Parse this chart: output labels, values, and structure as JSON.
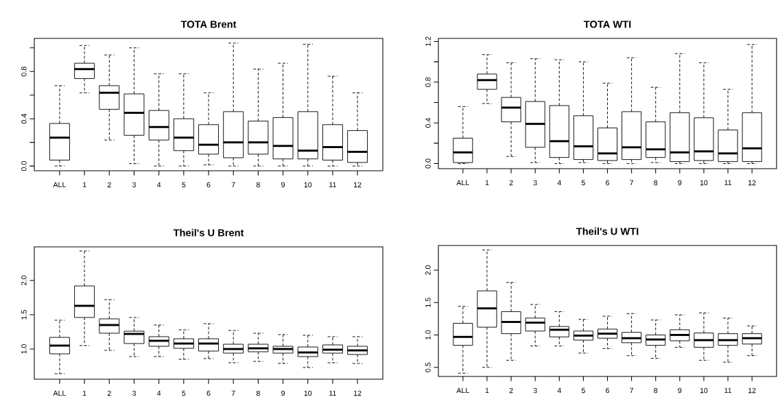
{
  "chart_data": [
    {
      "type": "box",
      "title": "TOTA Brent",
      "categories": [
        "ALL",
        "1",
        "2",
        "3",
        "4",
        "5",
        "6",
        "7",
        "8",
        "9",
        "10",
        "11",
        "12"
      ],
      "ylim": [
        -0.04,
        1.08
      ],
      "yticks": [
        {
          "value": 0,
          "label": "0.0"
        },
        {
          "value": 0.2,
          "label": null
        },
        0.4,
        {
          "value": 0.6,
          "label": null
        },
        0.8,
        {
          "value": 1.0,
          "label": null
        }
      ],
      "boxes": [
        {
          "low": 0.0,
          "q1": 0.05,
          "median": 0.24,
          "q3": 0.36,
          "high": 0.68
        },
        {
          "low": 0.62,
          "q1": 0.74,
          "median": 0.82,
          "q3": 0.87,
          "high": 1.02
        },
        {
          "low": 0.22,
          "q1": 0.48,
          "median": 0.62,
          "q3": 0.68,
          "high": 0.94
        },
        {
          "low": 0.02,
          "q1": 0.26,
          "median": 0.45,
          "q3": 0.61,
          "high": 1.0
        },
        {
          "low": 0.0,
          "q1": 0.22,
          "median": 0.33,
          "q3": 0.47,
          "high": 0.78
        },
        {
          "low": 0.0,
          "q1": 0.13,
          "median": 0.24,
          "q3": 0.4,
          "high": 0.78
        },
        {
          "low": 0.01,
          "q1": 0.1,
          "median": 0.18,
          "q3": 0.35,
          "high": 0.62
        },
        {
          "low": 0.0,
          "q1": 0.07,
          "median": 0.2,
          "q3": 0.46,
          "high": 1.04
        },
        {
          "low": 0.0,
          "q1": 0.1,
          "median": 0.2,
          "q3": 0.38,
          "high": 0.82
        },
        {
          "low": 0.0,
          "q1": 0.06,
          "median": 0.17,
          "q3": 0.41,
          "high": 0.87
        },
        {
          "low": 0.0,
          "q1": 0.06,
          "median": 0.13,
          "q3": 0.46,
          "high": 1.03
        },
        {
          "low": 0.0,
          "q1": 0.05,
          "median": 0.16,
          "q3": 0.35,
          "high": 0.76
        },
        {
          "low": 0.0,
          "q1": 0.03,
          "median": 0.12,
          "q3": 0.3,
          "high": 0.62
        }
      ]
    },
    {
      "type": "box",
      "title": "TOTA WTI",
      "categories": [
        "ALL",
        "1",
        "2",
        "3",
        "4",
        "5",
        "6",
        "7",
        "8",
        "9",
        "10",
        "11",
        "12"
      ],
      "ylim": [
        -0.05,
        1.23
      ],
      "yticks": [
        {
          "value": 0,
          "label": "0.0"
        },
        {
          "value": 0.2,
          "label": null
        },
        0.4,
        {
          "value": 0.6,
          "label": null
        },
        0.8,
        {
          "value": 1.0,
          "label": null
        },
        1.2
      ],
      "boxes": [
        {
          "low": 0.0,
          "q1": 0.01,
          "median": 0.11,
          "q3": 0.25,
          "high": 0.56
        },
        {
          "low": 0.59,
          "q1": 0.73,
          "median": 0.82,
          "q3": 0.88,
          "high": 1.07
        },
        {
          "low": 0.07,
          "q1": 0.41,
          "median": 0.55,
          "q3": 0.65,
          "high": 0.99
        },
        {
          "low": 0.01,
          "q1": 0.16,
          "median": 0.39,
          "q3": 0.61,
          "high": 1.03
        },
        {
          "low": 0.0,
          "q1": 0.06,
          "median": 0.22,
          "q3": 0.57,
          "high": 1.02
        },
        {
          "low": 0.01,
          "q1": 0.04,
          "median": 0.17,
          "q3": 0.47,
          "high": 1.0
        },
        {
          "low": 0.0,
          "q1": 0.03,
          "median": 0.1,
          "q3": 0.35,
          "high": 0.79
        },
        {
          "low": 0.0,
          "q1": 0.04,
          "median": 0.16,
          "q3": 0.51,
          "high": 1.04
        },
        {
          "low": 0.01,
          "q1": 0.06,
          "median": 0.14,
          "q3": 0.41,
          "high": 0.75
        },
        {
          "low": 0.0,
          "q1": 0.02,
          "median": 0.11,
          "q3": 0.5,
          "high": 1.08
        },
        {
          "low": 0.0,
          "q1": 0.03,
          "median": 0.12,
          "q3": 0.45,
          "high": 0.99
        },
        {
          "low": 0.0,
          "q1": 0.02,
          "median": 0.1,
          "q3": 0.33,
          "high": 0.73
        },
        {
          "low": 0.0,
          "q1": 0.02,
          "median": 0.15,
          "q3": 0.5,
          "high": 1.17
        }
      ]
    },
    {
      "type": "box",
      "title": "Theil's U Brent",
      "categories": [
        "ALL",
        "1",
        "2",
        "3",
        "4",
        "5",
        "6",
        "7",
        "8",
        "9",
        "10",
        "11",
        "12"
      ],
      "ylim": [
        0.56,
        2.49
      ],
      "yticks": [
        {
          "value": 1,
          "label": "1.0"
        },
        1.5,
        {
          "value": 2,
          "label": "2.0"
        }
      ],
      "boxes": [
        {
          "low": 0.64,
          "q1": 0.93,
          "median": 1.05,
          "q3": 1.17,
          "high": 1.42
        },
        {
          "low": 1.05,
          "q1": 1.46,
          "median": 1.63,
          "q3": 1.92,
          "high": 2.43
        },
        {
          "low": 0.98,
          "q1": 1.23,
          "median": 1.35,
          "q3": 1.44,
          "high": 1.72
        },
        {
          "low": 0.89,
          "q1": 1.08,
          "median": 1.22,
          "q3": 1.26,
          "high": 1.46
        },
        {
          "low": 0.89,
          "q1": 1.04,
          "median": 1.12,
          "q3": 1.18,
          "high": 1.35
        },
        {
          "low": 0.85,
          "q1": 1.01,
          "median": 1.08,
          "q3": 1.15,
          "high": 1.28
        },
        {
          "low": 0.86,
          "q1": 0.97,
          "median": 1.08,
          "q3": 1.15,
          "high": 1.37
        },
        {
          "low": 0.8,
          "q1": 0.94,
          "median": 1.0,
          "q3": 1.07,
          "high": 1.27
        },
        {
          "low": 0.82,
          "q1": 0.96,
          "median": 1.01,
          "q3": 1.07,
          "high": 1.23
        },
        {
          "low": 0.79,
          "q1": 0.94,
          "median": 1.0,
          "q3": 1.04,
          "high": 1.21
        },
        {
          "low": 0.73,
          "q1": 0.89,
          "median": 0.95,
          "q3": 1.03,
          "high": 1.2
        },
        {
          "low": 0.8,
          "q1": 0.94,
          "median": 0.99,
          "q3": 1.06,
          "high": 1.18
        },
        {
          "low": 0.79,
          "q1": 0.92,
          "median": 0.98,
          "q3": 1.04,
          "high": 1.18
        }
      ]
    },
    {
      "type": "box",
      "title": "Theil's U WTI",
      "categories": [
        "ALL",
        "1",
        "2",
        "3",
        "4",
        "5",
        "6",
        "7",
        "8",
        "9",
        "10",
        "11",
        "12"
      ],
      "ylim": [
        0.36,
        2.38
      ],
      "yticks": [
        0.5,
        {
          "value": 1,
          "label": "1.0"
        },
        1.5,
        {
          "value": 2,
          "label": "2.0"
        }
      ],
      "boxes": [
        {
          "low": 0.41,
          "q1": 0.84,
          "median": 0.97,
          "q3": 1.18,
          "high": 1.44
        },
        {
          "low": 0.5,
          "q1": 1.12,
          "median": 1.41,
          "q3": 1.68,
          "high": 2.31
        },
        {
          "low": 0.61,
          "q1": 1.02,
          "median": 1.2,
          "q3": 1.36,
          "high": 1.81
        },
        {
          "low": 0.83,
          "q1": 1.06,
          "median": 1.19,
          "q3": 1.26,
          "high": 1.47
        },
        {
          "low": 0.83,
          "q1": 0.97,
          "median": 1.08,
          "q3": 1.13,
          "high": 1.36
        },
        {
          "low": 0.72,
          "q1": 0.92,
          "median": 0.99,
          "q3": 1.06,
          "high": 1.24
        },
        {
          "low": 0.79,
          "q1": 0.95,
          "median": 1.02,
          "q3": 1.09,
          "high": 1.29
        },
        {
          "low": 0.68,
          "q1": 0.88,
          "median": 0.95,
          "q3": 1.04,
          "high": 1.33
        },
        {
          "low": 0.64,
          "q1": 0.84,
          "median": 0.93,
          "q3": 1.0,
          "high": 1.23
        },
        {
          "low": 0.81,
          "q1": 0.91,
          "median": 1.0,
          "q3": 1.08,
          "high": 1.31
        },
        {
          "low": 0.61,
          "q1": 0.81,
          "median": 0.92,
          "q3": 1.03,
          "high": 1.34
        },
        {
          "low": 0.58,
          "q1": 0.84,
          "median": 0.92,
          "q3": 1.02,
          "high": 1.26
        },
        {
          "low": 0.68,
          "q1": 0.86,
          "median": 0.95,
          "q3": 1.02,
          "high": 1.14
        }
      ]
    }
  ]
}
